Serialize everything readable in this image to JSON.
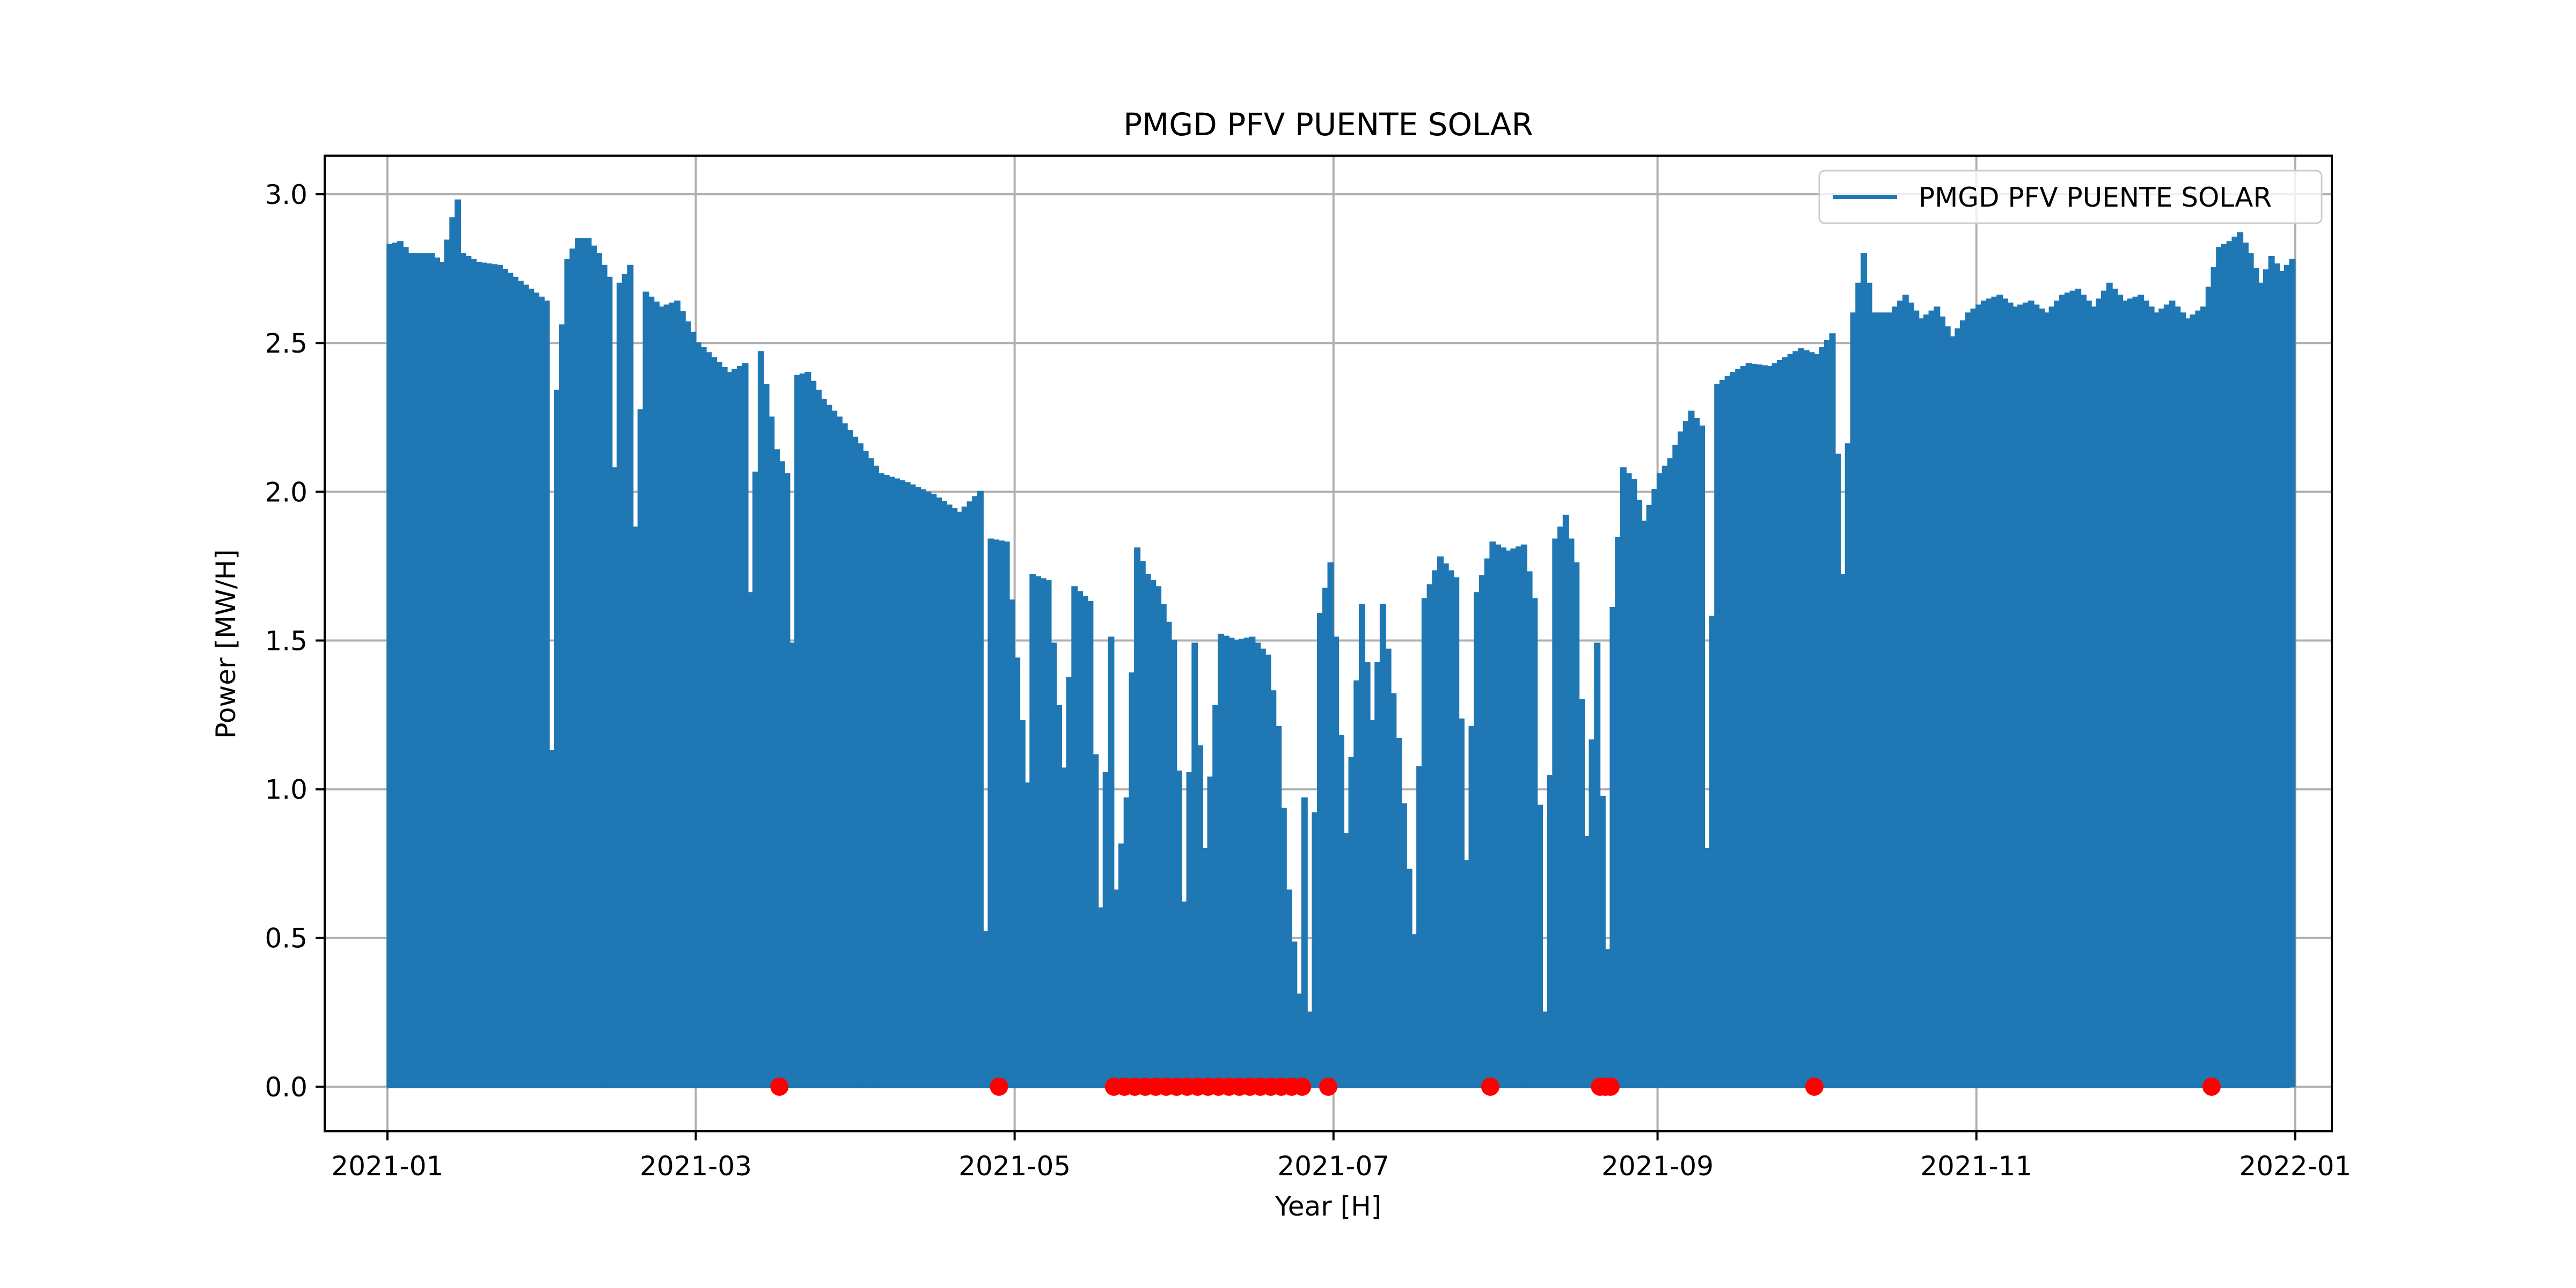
{
  "chart_data": {
    "type": "line",
    "title": "PMGD PFV PUENTE SOLAR",
    "xlabel": "Year [H]",
    "ylabel": "Power [MW/H]",
    "xlim": [
      "2020-12-20",
      "2022-01-08"
    ],
    "ylim": [
      -0.15,
      3.13
    ],
    "grid": true,
    "legend_position": "top-right",
    "x_ticks": [
      "2021-01",
      "2021-03",
      "2021-05",
      "2021-07",
      "2021-09",
      "2021-11",
      "2022-01"
    ],
    "y_ticks": [
      "0.0",
      "0.5",
      "1.0",
      "1.5",
      "2.0",
      "2.5",
      "3.0"
    ],
    "colors": {
      "series": "#1f77b4",
      "markers": "#ff0000",
      "grid": "#b0b0b0"
    },
    "series": [
      {
        "name": "PMGD PFV PUENTE SOLAR",
        "description_of_daily_peaks": "hourly power; daily peak values listed",
        "daily_peaks": [
          [
            "2021-01-01",
            2.83
          ],
          [
            "2021-01-03",
            2.84
          ],
          [
            "2021-01-05",
            2.8
          ],
          [
            "2021-01-07",
            2.8
          ],
          [
            "2021-01-09",
            2.8
          ],
          [
            "2021-01-11",
            2.77
          ],
          [
            "2021-01-13",
            2.92
          ],
          [
            "2021-01-14",
            2.98
          ],
          [
            "2021-01-15",
            2.8
          ],
          [
            "2021-01-18",
            2.77
          ],
          [
            "2021-01-22",
            2.76
          ],
          [
            "2021-01-25",
            2.72
          ],
          [
            "2021-01-28",
            2.68
          ],
          [
            "2021-01-31",
            2.64
          ],
          [
            "2021-02-01",
            1.13
          ],
          [
            "2021-02-02",
            2.34
          ],
          [
            "2021-02-04",
            2.78
          ],
          [
            "2021-02-06",
            2.85
          ],
          [
            "2021-02-08",
            2.85
          ],
          [
            "2021-02-10",
            2.8
          ],
          [
            "2021-02-12",
            2.72
          ],
          [
            "2021-02-13",
            2.08
          ],
          [
            "2021-02-14",
            2.7
          ],
          [
            "2021-02-16",
            2.76
          ],
          [
            "2021-02-17",
            1.88
          ],
          [
            "2021-02-19",
            2.67
          ],
          [
            "2021-02-22",
            2.62
          ],
          [
            "2021-02-25",
            2.64
          ],
          [
            "2021-03-01",
            2.5
          ],
          [
            "2021-03-04",
            2.45
          ],
          [
            "2021-03-07",
            2.4
          ],
          [
            "2021-03-10",
            2.43
          ],
          [
            "2021-03-11",
            1.66
          ],
          [
            "2021-03-13",
            2.47
          ],
          [
            "2021-03-16",
            2.14
          ],
          [
            "2021-03-18",
            2.06
          ],
          [
            "2021-03-19",
            1.49
          ],
          [
            "2021-03-20",
            2.39
          ],
          [
            "2021-03-22",
            2.4
          ],
          [
            "2021-03-25",
            2.31
          ],
          [
            "2021-03-28",
            2.25
          ],
          [
            "2021-04-01",
            2.16
          ],
          [
            "2021-04-05",
            2.06
          ],
          [
            "2021-04-10",
            2.03
          ],
          [
            "2021-04-15",
            1.99
          ],
          [
            "2021-04-20",
            1.93
          ],
          [
            "2021-04-24",
            2.0
          ],
          [
            "2021-04-25",
            0.52
          ],
          [
            "2021-04-26",
            1.84
          ],
          [
            "2021-04-29",
            1.83
          ],
          [
            "2021-05-01",
            1.44
          ],
          [
            "2021-05-03",
            1.02
          ],
          [
            "2021-05-04",
            1.72
          ],
          [
            "2021-05-07",
            1.7
          ],
          [
            "2021-05-10",
            1.07
          ],
          [
            "2021-05-12",
            1.68
          ],
          [
            "2021-05-15",
            1.63
          ],
          [
            "2021-05-17",
            0.6
          ],
          [
            "2021-05-19",
            1.51
          ],
          [
            "2021-05-20",
            0.66
          ],
          [
            "2021-05-22",
            0.97
          ],
          [
            "2021-05-24",
            1.81
          ],
          [
            "2021-05-26",
            1.72
          ],
          [
            "2021-05-28",
            1.68
          ],
          [
            "2021-05-31",
            1.5
          ],
          [
            "2021-06-02",
            0.62
          ],
          [
            "2021-06-04",
            1.49
          ],
          [
            "2021-06-06",
            0.8
          ],
          [
            "2021-06-09",
            1.52
          ],
          [
            "2021-06-12",
            1.5
          ],
          [
            "2021-06-15",
            1.51
          ],
          [
            "2021-06-18",
            1.45
          ],
          [
            "2021-06-20",
            1.21
          ],
          [
            "2021-06-22",
            0.66
          ],
          [
            "2021-06-24",
            0.31
          ],
          [
            "2021-06-25",
            0.97
          ],
          [
            "2021-06-26",
            0.25
          ],
          [
            "2021-06-28",
            1.59
          ],
          [
            "2021-06-30",
            1.76
          ],
          [
            "2021-07-01",
            1.51
          ],
          [
            "2021-07-03",
            0.85
          ],
          [
            "2021-07-06",
            1.62
          ],
          [
            "2021-07-08",
            1.23
          ],
          [
            "2021-07-10",
            1.62
          ],
          [
            "2021-07-13",
            1.17
          ],
          [
            "2021-07-16",
            0.51
          ],
          [
            "2021-07-18",
            1.64
          ],
          [
            "2021-07-21",
            1.78
          ],
          [
            "2021-07-24",
            1.71
          ],
          [
            "2021-07-26",
            0.76
          ],
          [
            "2021-07-28",
            1.66
          ],
          [
            "2021-07-31",
            1.83
          ],
          [
            "2021-08-03",
            1.8
          ],
          [
            "2021-08-06",
            1.82
          ],
          [
            "2021-08-08",
            1.64
          ],
          [
            "2021-08-10",
            0.25
          ],
          [
            "2021-08-12",
            1.84
          ],
          [
            "2021-08-14",
            1.92
          ],
          [
            "2021-08-16",
            1.76
          ],
          [
            "2021-08-18",
            0.84
          ],
          [
            "2021-08-20",
            1.49
          ],
          [
            "2021-08-22",
            0.46
          ],
          [
            "2021-08-23",
            1.61
          ],
          [
            "2021-08-25",
            2.08
          ],
          [
            "2021-08-27",
            2.04
          ],
          [
            "2021-08-29",
            1.9
          ],
          [
            "2021-09-01",
            2.06
          ],
          [
            "2021-09-03",
            2.11
          ],
          [
            "2021-09-05",
            2.2
          ],
          [
            "2021-09-07",
            2.27
          ],
          [
            "2021-09-09",
            2.22
          ],
          [
            "2021-09-10",
            0.8
          ],
          [
            "2021-09-12",
            2.36
          ],
          [
            "2021-09-15",
            2.4
          ],
          [
            "2021-09-18",
            2.43
          ],
          [
            "2021-09-22",
            2.42
          ],
          [
            "2021-09-25",
            2.45
          ],
          [
            "2021-09-28",
            2.48
          ],
          [
            "2021-10-01",
            2.46
          ],
          [
            "2021-10-04",
            2.53
          ],
          [
            "2021-10-06",
            1.72
          ],
          [
            "2021-10-08",
            2.6
          ],
          [
            "2021-10-10",
            2.8
          ],
          [
            "2021-10-12",
            2.6
          ],
          [
            "2021-10-15",
            2.6
          ],
          [
            "2021-10-18",
            2.66
          ],
          [
            "2021-10-21",
            2.58
          ],
          [
            "2021-10-24",
            2.62
          ],
          [
            "2021-10-27",
            2.52
          ],
          [
            "2021-10-30",
            2.6
          ],
          [
            "2021-11-02",
            2.64
          ],
          [
            "2021-11-05",
            2.66
          ],
          [
            "2021-11-08",
            2.62
          ],
          [
            "2021-11-11",
            2.64
          ],
          [
            "2021-11-14",
            2.6
          ],
          [
            "2021-11-17",
            2.66
          ],
          [
            "2021-11-20",
            2.68
          ],
          [
            "2021-11-23",
            2.62
          ],
          [
            "2021-11-26",
            2.7
          ],
          [
            "2021-11-29",
            2.64
          ],
          [
            "2021-12-02",
            2.66
          ],
          [
            "2021-12-05",
            2.6
          ],
          [
            "2021-12-08",
            2.64
          ],
          [
            "2021-12-11",
            2.58
          ],
          [
            "2021-12-14",
            2.62
          ],
          [
            "2021-12-17",
            2.82
          ],
          [
            "2021-12-19",
            2.84
          ],
          [
            "2021-12-21",
            2.87
          ],
          [
            "2021-12-23",
            2.8
          ],
          [
            "2021-12-25",
            2.7
          ],
          [
            "2021-12-27",
            2.79
          ],
          [
            "2021-12-29",
            2.74
          ],
          [
            "2021-12-31",
            2.78
          ]
        ]
      }
    ],
    "zero_markers": [
      "2021-03-17",
      "2021-04-28",
      "2021-05-20",
      "2021-05-22",
      "2021-05-24",
      "2021-05-26",
      "2021-05-28",
      "2021-05-30",
      "2021-06-01",
      "2021-06-03",
      "2021-06-05",
      "2021-06-07",
      "2021-06-09",
      "2021-06-11",
      "2021-06-13",
      "2021-06-15",
      "2021-06-17",
      "2021-06-19",
      "2021-06-21",
      "2021-06-23",
      "2021-06-25",
      "2021-06-30",
      "2021-07-31",
      "2021-08-21",
      "2021-08-22",
      "2021-08-23",
      "2021-10-01",
      "2021-12-16"
    ]
  }
}
